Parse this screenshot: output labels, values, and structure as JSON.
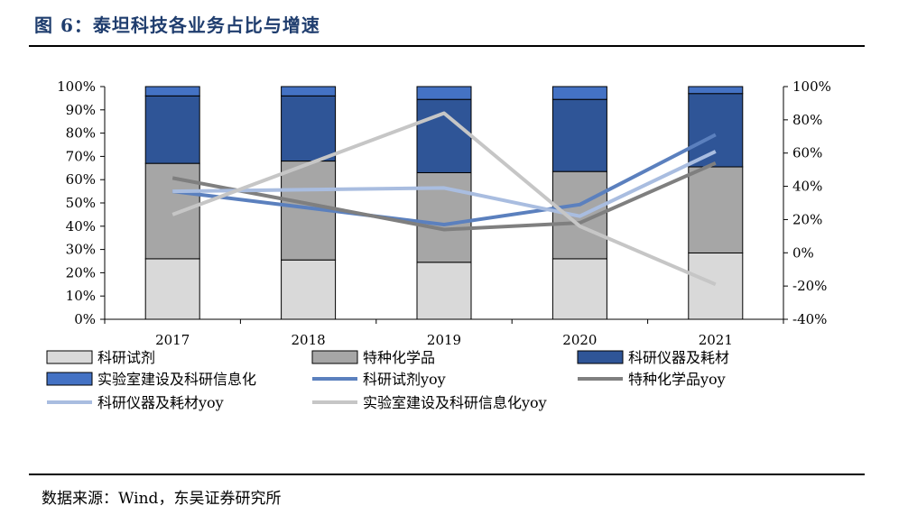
{
  "header": {
    "title": "图 6：泰坦科技各业务占比与增速"
  },
  "footer": {
    "source": "数据来源：Wind，东吴证券研究所"
  },
  "chart_data": {
    "type": "bar",
    "stacked": true,
    "categories": [
      "2017",
      "2018",
      "2019",
      "2020",
      "2021"
    ],
    "left_axis": {
      "ylim": [
        0,
        100
      ],
      "ticks": [
        "0%",
        "10%",
        "20%",
        "30%",
        "40%",
        "50%",
        "60%",
        "70%",
        "80%",
        "90%",
        "100%"
      ]
    },
    "right_axis": {
      "ylim": [
        -40,
        100
      ],
      "ticks": [
        "-40%",
        "-20%",
        "0%",
        "20%",
        "40%",
        "60%",
        "80%",
        "100%"
      ]
    },
    "bar_series": [
      {
        "name": "科研试剂",
        "color": "#d9d9d9",
        "values": [
          26,
          25.5,
          24.5,
          26,
          28.5
        ]
      },
      {
        "name": "特种化学品",
        "color": "#a6a6a6",
        "values": [
          41,
          42.5,
          38.5,
          37.5,
          37
        ]
      },
      {
        "name": "科研仪器及耗材",
        "color": "#2f5597",
        "values": [
          29,
          28,
          31.5,
          31,
          31.5
        ]
      },
      {
        "name": "实验室建设及科研信息化",
        "color": "#4472c4",
        "values": [
          4,
          4,
          5.5,
          5.5,
          3
        ]
      }
    ],
    "line_series": [
      {
        "name": "科研试剂yoy",
        "color": "#5b80be",
        "values": [
          37,
          null,
          17,
          29,
          71
        ]
      },
      {
        "name": "特种化学品yoy",
        "color": "#7f7f7f",
        "values": [
          45,
          null,
          14,
          18,
          54
        ]
      },
      {
        "name": "科研仪器及耗材yoy",
        "color": "#a9bde0",
        "values": [
          37,
          null,
          39,
          22,
          61
        ]
      },
      {
        "name": "实验室建设及科研信息化yoy",
        "color": "#c6c6c6",
        "values": [
          23,
          null,
          84,
          16,
          -19
        ]
      }
    ],
    "legend": {
      "position": "bottom",
      "items": [
        "科研试剂",
        "特种化学品",
        "科研仪器及耗材",
        "实验室建设及科研信息化",
        "科研试剂yoy",
        "特种化学品yoy",
        "科研仪器及耗材yoy",
        "实验室建设及科研信息化yoy"
      ]
    }
  }
}
